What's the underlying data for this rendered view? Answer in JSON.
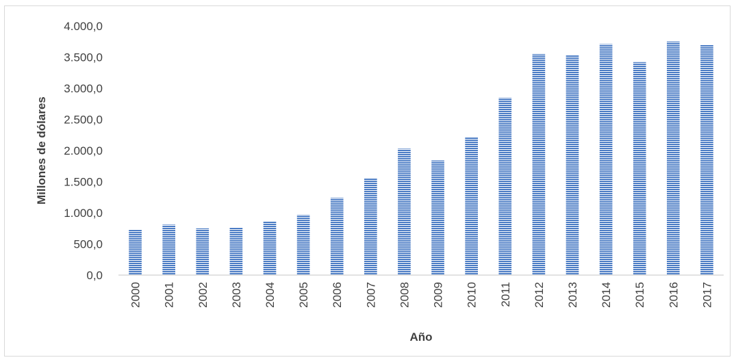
{
  "chart_data": {
    "type": "bar",
    "title": "",
    "xlabel": "Año",
    "ylabel": "Millones de dólares",
    "ylim": [
      0,
      4000
    ],
    "yticks": [
      0,
      500,
      1000,
      1500,
      2000,
      2500,
      3000,
      3500,
      4000
    ],
    "ytick_labels": [
      "0,0",
      "500,0",
      "1.000,0",
      "1.500,0",
      "2.000,0",
      "2.500,0",
      "3.000,0",
      "3.500,0",
      "4.000,0"
    ],
    "categories": [
      "2000",
      "2001",
      "2002",
      "2003",
      "2004",
      "2005",
      "2006",
      "2007",
      "2008",
      "2009",
      "2010",
      "2011",
      "2012",
      "2013",
      "2014",
      "2015",
      "2016",
      "2017"
    ],
    "values": [
      730,
      810,
      750,
      760,
      860,
      970,
      1240,
      1550,
      2030,
      1840,
      2210,
      2850,
      3550,
      3530,
      3710,
      3420,
      3750,
      3700
    ],
    "grid": false,
    "legend": "none",
    "bar_color": "#4a7bc4",
    "bar_pattern": "horizontal-stripes"
  }
}
